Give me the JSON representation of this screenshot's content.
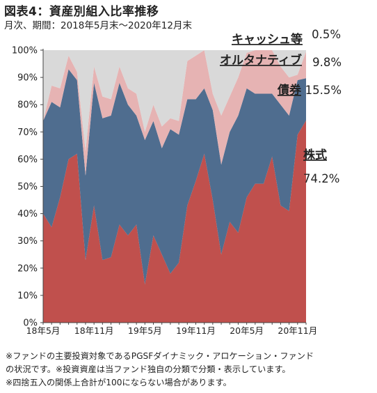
{
  "title": "図表4：資産別組入比率推移",
  "subtitle": "月次、期間：2018年5月末～2020年12月末",
  "notes": [
    "※ファンドの主要投資対象であるPGSFダイナミック・アロケーション・ファンド",
    "の状況です。※投資資産は当ファンド独自の分類で分類・表示しています。",
    "※四捨五入の関係上合計が100にならない場合があります。"
  ],
  "colors": {
    "stocks": "#c0504d",
    "bonds": "#4f6d8f",
    "alternative": "#e6b3b3",
    "cash": "#d9d9d9"
  },
  "chart_data": {
    "type": "area",
    "stacked": true,
    "x": [
      "2018-05",
      "2018-06",
      "2018-07",
      "2018-08",
      "2018-09",
      "2018-10",
      "2018-11",
      "2018-12",
      "2019-01",
      "2019-02",
      "2019-03",
      "2019-04",
      "2019-05",
      "2019-06",
      "2019-07",
      "2019-08",
      "2019-09",
      "2019-10",
      "2019-11",
      "2019-12",
      "2020-01",
      "2020-02",
      "2020-03",
      "2020-04",
      "2020-05",
      "2020-06",
      "2020-07",
      "2020-08",
      "2020-09",
      "2020-10",
      "2020-11",
      "2020-12"
    ],
    "x_tick_labels": [
      {
        "label": "18年5月",
        "index": 0
      },
      {
        "label": "18年11月",
        "index": 6
      },
      {
        "label": "19年5月",
        "index": 12
      },
      {
        "label": "19年11月",
        "index": 18
      },
      {
        "label": "20年5月",
        "index": 24
      },
      {
        "label": "20年11月",
        "index": 30
      }
    ],
    "ylim": [
      0,
      100
    ],
    "yticks": [
      "0%",
      "10%",
      "20%",
      "30%",
      "40%",
      "50%",
      "60%",
      "70%",
      "80%",
      "90%",
      "100%"
    ],
    "series": [
      {
        "name": "株式",
        "key": "stocks",
        "values": [
          40,
          35,
          46,
          60,
          62,
          23,
          43,
          23,
          24,
          36,
          32,
          36,
          14,
          32,
          25,
          18,
          22,
          43,
          52,
          62,
          45,
          25,
          37,
          33,
          46,
          51,
          51,
          61,
          43,
          41,
          69,
          74.2
        ]
      },
      {
        "name": "債券",
        "key": "bonds",
        "values": [
          34,
          46,
          33,
          33,
          27,
          31,
          45,
          52,
          52,
          52,
          48,
          40,
          53,
          42,
          39,
          53,
          47,
          39,
          30,
          24,
          33,
          33,
          33,
          43,
          40,
          33,
          33,
          23,
          37,
          35,
          20,
          15.5
        ]
      },
      {
        "name": "オルタナティブ",
        "key": "alternative",
        "values": [
          0,
          6,
          7,
          5,
          3,
          9,
          6,
          8,
          6,
          6,
          6,
          8,
          3,
          6,
          8,
          4,
          5,
          14,
          16,
          14,
          6,
          18,
          13,
          14,
          13,
          16,
          16,
          16,
          14,
          14,
          2,
          9.8
        ]
      },
      {
        "name": "キャッシュ等",
        "key": "cash",
        "values": [
          26,
          13,
          14,
          2,
          8,
          37,
          6,
          17,
          18,
          6,
          14,
          16,
          30,
          20,
          28,
          25,
          26,
          4,
          2,
          0,
          16,
          24,
          17,
          10,
          1,
          0,
          0,
          0,
          6,
          10,
          9,
          0.5
        ]
      }
    ],
    "legend_labels": [
      {
        "key": "cash",
        "name": "キャッシュ等",
        "value": "0.5%"
      },
      {
        "key": "alternative",
        "name": "オルタナティブ",
        "value": "9.8%"
      },
      {
        "key": "bonds",
        "name": "債券",
        "value": "15.5%"
      },
      {
        "key": "stocks",
        "name": "株式",
        "value": "74.2%"
      }
    ],
    "grid": false
  }
}
